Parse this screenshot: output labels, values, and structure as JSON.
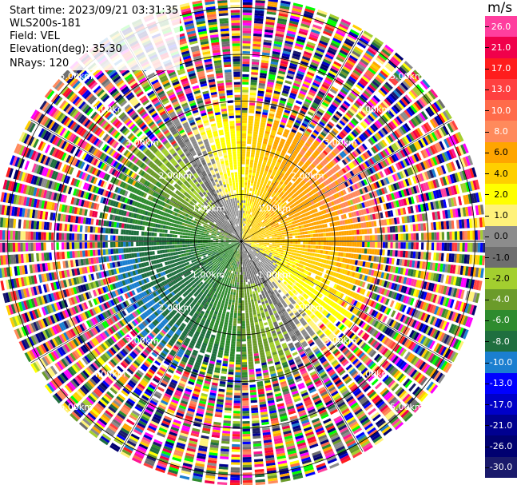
{
  "header": {
    "start_time": "Start time: 2023/09/21 03:31:35",
    "instrument": "WLS200s-181",
    "field": "Field: VEL",
    "elevation": "Elevation(deg): 35.30",
    "nrays": "NRays: 120"
  },
  "colorbar": {
    "unit": "m/s",
    "levels": [
      {
        "label": "26.0",
        "color": "#ff3e9e"
      },
      {
        "label": "21.0",
        "color": "#f0004b"
      },
      {
        "label": "17.0",
        "color": "#ff1d1d"
      },
      {
        "label": "13.0",
        "color": "#ff4040"
      },
      {
        "label": "10.0",
        "color": "#ff6b4a"
      },
      {
        "label": "8.0",
        "color": "#ff8a5c"
      },
      {
        "label": "6.0",
        "color": "#ffa500"
      },
      {
        "label": "4.0",
        "color": "#ffcf00"
      },
      {
        "label": "2.0",
        "color": "#ffff00"
      },
      {
        "label": "1.0",
        "color": "#fff27a"
      },
      {
        "label": "0.0",
        "color": "#8c8c8c"
      },
      {
        "label": "-1.0",
        "color": "#6e6e6e"
      },
      {
        "label": "-2.0",
        "color": "#a3cf2f"
      },
      {
        "label": "-4.0",
        "color": "#6b9b2a"
      },
      {
        "label": "-6.0",
        "color": "#2e8b2e"
      },
      {
        "label": "-8.0",
        "color": "#1f6f3f"
      },
      {
        "label": "-10.0",
        "color": "#1b7fd0"
      },
      {
        "label": "-13.0",
        "color": "#0000ff"
      },
      {
        "label": "-17.0",
        "color": "#0000c8"
      },
      {
        "label": "-21.0",
        "color": "#000090"
      },
      {
        "label": "-26.0",
        "color": "#000070"
      },
      {
        "label": "-30.0",
        "color": "#1a1a6b"
      }
    ]
  },
  "chart_data": {
    "type": "heatmap",
    "projection": "polar-ppi",
    "field": "VEL",
    "units": "m/s",
    "nrays": 120,
    "ring_labels": [
      "1.00km",
      "2.00km",
      "3.00km",
      "4.00km",
      "5.00km"
    ],
    "ring_ranges_km": [
      1,
      2,
      3,
      4,
      5
    ],
    "max_range_km": 5.2,
    "clim": [
      -30,
      30
    ],
    "velocity_pattern": {
      "positive_sector_deg": [
        0,
        150
      ],
      "negative_sector_deg": [
        180,
        330
      ],
      "peak_velocity": 8.0,
      "near_field_limit_km": 3.2
    }
  }
}
